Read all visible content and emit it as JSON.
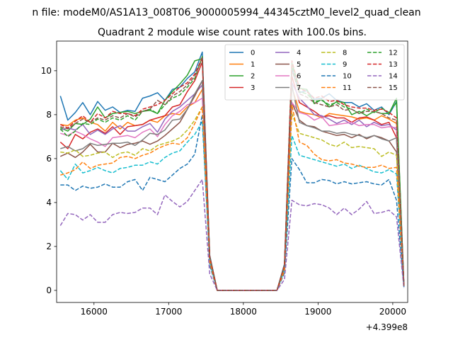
{
  "figure": {
    "suptitle": "n file: modeM0/AS1A13_008T06_9000005994_44345cztM0_level2_quad_clean"
  },
  "chart_data": {
    "type": "line",
    "title": "Quadrant 2 module wise count rates with 100.0s bins.",
    "xlabel": "",
    "ylabel": "",
    "x_offset_label": "+4.399e8",
    "xlim": [
      15500,
      20200
    ],
    "ylim": [
      -0.55,
      11.35
    ],
    "xticks": [
      16000,
      17000,
      18000,
      19000,
      20000
    ],
    "xtick_labels": [
      "16000",
      "17000",
      "18000",
      "19000",
      "20000"
    ],
    "yticks": [
      0,
      2,
      4,
      6,
      8,
      10
    ],
    "ytick_labels": [
      "0",
      "2",
      "4",
      "6",
      "8",
      "10"
    ],
    "grid": false,
    "legend_position": "upper-right",
    "legend_columns": 4,
    "x_pre": [
      15550,
      15650,
      15750,
      15850,
      15950,
      16050,
      16150,
      16250,
      16350,
      16450,
      16550,
      16650,
      16750,
      16850,
      16950,
      17050,
      17150,
      17250,
      17350,
      17450,
      17550,
      17650,
      17750,
      17850,
      17950,
      18050,
      18150,
      18250,
      18350,
      18450,
      18550,
      18650,
      18750,
      18850,
      18950,
      19050,
      19150,
      19250,
      19350,
      19450,
      19550,
      19650,
      19750,
      19850,
      19950,
      20050,
      20150
    ],
    "series": [
      {
        "name": "0",
        "color": "#1f77b4",
        "dash": "solid",
        "values": [
          8.85,
          7.75,
          8.1,
          8.55,
          8.0,
          8.6,
          8.2,
          8.35,
          8.1,
          8.2,
          8.15,
          8.75,
          8.85,
          9.0,
          8.65,
          9.15,
          9.25,
          9.65,
          9.95,
          10.85,
          1.6,
          0.0,
          0.0,
          0.0,
          0.0,
          0.0,
          0.0,
          0.0,
          0.0,
          0.0,
          1.2,
          10.1,
          9.0,
          9.1,
          8.7,
          8.75,
          8.95,
          8.65,
          8.55,
          8.55,
          8.35,
          8.5,
          8.2,
          8.35,
          8.0,
          8.6,
          0.25
        ]
      },
      {
        "name": "1",
        "color": "#ff7f0e",
        "dash": "solid",
        "values": [
          7.55,
          7.5,
          7.75,
          7.85,
          7.65,
          7.55,
          7.25,
          7.65,
          7.35,
          7.65,
          7.5,
          7.55,
          7.75,
          7.65,
          7.95,
          8.05,
          8.0,
          8.35,
          8.55,
          9.15,
          1.5,
          0.0,
          0.0,
          0.0,
          0.0,
          0.0,
          0.0,
          0.0,
          0.0,
          0.0,
          1.1,
          9.25,
          8.15,
          8.05,
          8.0,
          7.85,
          8.05,
          8.0,
          7.95,
          7.9,
          7.8,
          7.85,
          7.75,
          7.95,
          7.8,
          7.6,
          0.2
        ]
      },
      {
        "name": "2",
        "color": "#2ca02c",
        "dash": "solid",
        "values": [
          7.4,
          7.25,
          7.6,
          7.55,
          7.8,
          8.35,
          7.85,
          8.05,
          8.1,
          8.15,
          8.05,
          8.15,
          8.2,
          8.05,
          8.65,
          9.05,
          9.4,
          9.8,
          10.45,
          10.55,
          1.55,
          0.0,
          0.0,
          0.0,
          0.0,
          0.0,
          0.0,
          0.0,
          0.0,
          0.0,
          1.15,
          10.35,
          9.2,
          9.15,
          8.5,
          8.7,
          8.35,
          8.6,
          8.55,
          8.0,
          8.15,
          7.95,
          8.15,
          8.05,
          8.05,
          8.75,
          0.2
        ]
      },
      {
        "name": "3",
        "color": "#d62728",
        "dash": "solid",
        "values": [
          6.75,
          6.45,
          7.1,
          6.9,
          7.2,
          7.35,
          7.15,
          7.45,
          7.1,
          7.45,
          7.5,
          7.55,
          7.75,
          7.85,
          7.95,
          8.35,
          8.45,
          9.05,
          9.55,
          10.4,
          1.45,
          0.0,
          0.0,
          0.0,
          0.0,
          0.0,
          0.0,
          0.0,
          0.0,
          0.0,
          1.1,
          9.75,
          8.55,
          8.35,
          8.15,
          7.9,
          7.95,
          7.85,
          7.85,
          7.65,
          7.85,
          7.9,
          7.75,
          7.55,
          7.65,
          6.95,
          0.2
        ]
      },
      {
        "name": "4",
        "color": "#9467bd",
        "dash": "solid",
        "values": [
          7.3,
          7.4,
          7.3,
          7.55,
          7.1,
          7.3,
          7.1,
          7.35,
          7.5,
          7.25,
          7.25,
          7.45,
          7.6,
          7.2,
          7.8,
          8.15,
          8.35,
          8.65,
          8.95,
          9.35,
          1.45,
          0.0,
          0.0,
          0.0,
          0.0,
          0.0,
          0.0,
          0.0,
          0.0,
          0.0,
          1.1,
          9.45,
          8.75,
          8.4,
          8.0,
          7.95,
          7.8,
          7.6,
          7.75,
          7.55,
          7.75,
          7.45,
          7.65,
          7.5,
          7.55,
          7.3,
          0.2
        ]
      },
      {
        "name": "5",
        "color": "#8c564b",
        "dash": "solid",
        "values": [
          6.1,
          6.25,
          6.05,
          6.3,
          6.65,
          6.3,
          6.3,
          6.7,
          6.5,
          6.65,
          6.7,
          6.8,
          6.65,
          6.8,
          7.05,
          7.35,
          7.65,
          8.25,
          8.85,
          9.55,
          1.4,
          0.0,
          0.0,
          0.0,
          0.0,
          0.0,
          0.0,
          0.0,
          0.0,
          0.0,
          1.0,
          8.55,
          7.75,
          7.5,
          7.45,
          7.25,
          7.15,
          7.05,
          7.1,
          6.95,
          7.1,
          6.9,
          7.05,
          6.95,
          6.8,
          6.3,
          0.2
        ]
      },
      {
        "name": "6",
        "color": "#e377c2",
        "dash": "solid",
        "values": [
          7.15,
          7.05,
          7.25,
          7.1,
          6.9,
          6.75,
          6.55,
          6.95,
          7.0,
          7.05,
          6.95,
          7.2,
          7.35,
          7.0,
          7.55,
          7.95,
          8.15,
          8.45,
          8.55,
          8.75,
          1.4,
          0.0,
          0.0,
          0.0,
          0.0,
          0.0,
          0.0,
          0.0,
          0.0,
          0.0,
          1.0,
          8.55,
          8.1,
          8.0,
          7.75,
          7.9,
          7.5,
          7.55,
          7.6,
          7.65,
          7.5,
          7.55,
          7.55,
          7.4,
          7.45,
          7.4,
          0.2
        ]
      },
      {
        "name": "7",
        "color": "#7f7f7f",
        "dash": "solid",
        "values": [
          6.45,
          6.55,
          6.35,
          6.45,
          6.7,
          6.6,
          6.65,
          6.7,
          6.7,
          6.75,
          6.6,
          6.85,
          7.15,
          7.1,
          7.3,
          7.75,
          7.8,
          8.25,
          8.95,
          9.55,
          1.4,
          0.0,
          0.0,
          0.0,
          0.0,
          0.0,
          0.0,
          0.0,
          0.0,
          0.0,
          1.0,
          9.35,
          7.65,
          7.5,
          7.4,
          7.25,
          7.25,
          7.15,
          7.2,
          7.1,
          7.05,
          6.95,
          7.05,
          6.9,
          6.8,
          6.95,
          0.2
        ]
      },
      {
        "name": "8",
        "color": "#bcbd22",
        "dash": "dashed",
        "values": [
          6.3,
          6.25,
          6.4,
          6.1,
          6.15,
          6.25,
          6.3,
          6.05,
          6.25,
          6.3,
          6.15,
          6.45,
          6.35,
          6.6,
          6.7,
          6.8,
          6.95,
          7.3,
          7.75,
          8.35,
          1.3,
          0.0,
          0.0,
          0.0,
          0.0,
          0.0,
          0.0,
          0.0,
          0.0,
          0.0,
          0.95,
          8.05,
          7.15,
          7.05,
          6.95,
          6.85,
          6.65,
          6.55,
          6.75,
          6.5,
          6.55,
          6.5,
          6.45,
          6.1,
          6.3,
          6.15,
          0.2
        ]
      },
      {
        "name": "9",
        "color": "#17becf",
        "dash": "dashed",
        "values": [
          5.45,
          5.05,
          5.75,
          5.35,
          5.45,
          5.6,
          5.45,
          5.35,
          5.55,
          5.6,
          5.7,
          5.7,
          5.85,
          5.75,
          6.05,
          6.25,
          6.35,
          6.75,
          7.1,
          7.7,
          1.25,
          0.0,
          0.0,
          0.0,
          0.0,
          0.0,
          0.0,
          0.0,
          0.0,
          0.0,
          0.9,
          7.05,
          6.15,
          6.05,
          5.95,
          5.85,
          5.75,
          5.65,
          5.75,
          5.55,
          5.7,
          5.55,
          5.4,
          5.35,
          5.5,
          5.3,
          0.2
        ]
      },
      {
        "name": "10",
        "color": "#1f77b4",
        "dash": "dashed",
        "values": [
          4.8,
          4.8,
          4.55,
          4.75,
          4.65,
          4.7,
          4.85,
          4.7,
          4.7,
          4.95,
          5.05,
          4.55,
          5.15,
          5.05,
          4.95,
          5.25,
          5.55,
          5.75,
          6.2,
          8.0,
          1.15,
          0.0,
          0.0,
          0.0,
          0.0,
          0.0,
          0.0,
          0.0,
          0.0,
          0.0,
          0.8,
          6.0,
          5.5,
          4.9,
          4.9,
          5.05,
          5.0,
          4.85,
          4.95,
          4.85,
          4.9,
          4.95,
          4.85,
          4.8,
          5.05,
          4.1,
          0.15
        ]
      },
      {
        "name": "11",
        "color": "#ff7f0e",
        "dash": "dashed",
        "values": [
          5.25,
          5.35,
          5.5,
          5.85,
          5.55,
          5.7,
          5.75,
          5.8,
          6.05,
          6.1,
          6.0,
          6.15,
          6.25,
          6.45,
          6.6,
          6.7,
          6.65,
          6.95,
          7.6,
          8.35,
          1.3,
          0.0,
          0.0,
          0.0,
          0.0,
          0.0,
          0.0,
          0.0,
          0.0,
          0.0,
          0.9,
          8.45,
          6.75,
          6.6,
          6.2,
          5.95,
          5.9,
          5.95,
          5.8,
          5.75,
          5.65,
          5.6,
          5.6,
          5.7,
          5.55,
          5.6,
          0.2
        ]
      },
      {
        "name": "12",
        "color": "#2ca02c",
        "dash": "dashed",
        "values": [
          7.35,
          7.0,
          7.25,
          7.6,
          7.55,
          7.8,
          7.65,
          7.85,
          7.75,
          7.95,
          7.75,
          8.15,
          8.25,
          8.05,
          8.45,
          8.75,
          8.9,
          9.25,
          9.65,
          10.65,
          1.55,
          0.0,
          0.0,
          0.0,
          0.0,
          0.0,
          0.0,
          0.0,
          0.0,
          0.0,
          1.15,
          10.25,
          9.05,
          8.95,
          8.6,
          8.65,
          8.45,
          8.55,
          8.35,
          8.25,
          8.05,
          8.25,
          8.1,
          8.3,
          8.1,
          8.55,
          0.2
        ]
      },
      {
        "name": "13",
        "color": "#d62728",
        "dash": "dashed",
        "values": [
          7.55,
          7.4,
          7.7,
          7.95,
          7.65,
          8.05,
          7.85,
          8.15,
          8.05,
          8.05,
          7.95,
          8.25,
          8.35,
          8.45,
          8.65,
          8.95,
          9.25,
          9.45,
          9.85,
          10.6,
          1.55,
          0.0,
          0.0,
          0.0,
          0.0,
          0.0,
          0.0,
          0.0,
          0.0,
          0.0,
          1.15,
          10.45,
          9.2,
          9.05,
          8.75,
          8.85,
          8.6,
          8.65,
          8.45,
          8.35,
          8.3,
          8.3,
          8.2,
          8.25,
          8.1,
          7.85,
          0.2
        ]
      },
      {
        "name": "14",
        "color": "#9467bd",
        "dash": "dashed",
        "values": [
          2.95,
          3.5,
          3.45,
          3.2,
          3.45,
          3.1,
          3.1,
          3.45,
          3.55,
          3.5,
          3.55,
          3.75,
          3.75,
          3.45,
          4.35,
          4.05,
          3.8,
          4.05,
          4.55,
          5.05,
          0.75,
          0.0,
          0.0,
          0.0,
          0.0,
          0.0,
          0.0,
          0.0,
          0.0,
          0.0,
          0.5,
          4.1,
          3.9,
          3.85,
          3.95,
          3.9,
          3.75,
          3.45,
          3.75,
          3.45,
          3.7,
          4.05,
          3.5,
          3.55,
          3.65,
          3.35,
          0.1
        ]
      },
      {
        "name": "15",
        "color": "#8c564b",
        "dash": "dashed",
        "values": [
          7.45,
          7.35,
          7.6,
          7.8,
          7.65,
          7.85,
          7.75,
          7.95,
          7.85,
          8.05,
          7.9,
          8.15,
          8.25,
          8.65,
          8.45,
          8.85,
          9.05,
          9.35,
          9.75,
          10.55,
          1.55,
          0.0,
          0.0,
          0.0,
          0.0,
          0.0,
          0.0,
          0.0,
          0.0,
          0.0,
          1.15,
          10.05,
          8.95,
          8.8,
          8.55,
          8.45,
          8.35,
          8.45,
          8.2,
          8.25,
          8.05,
          8.15,
          8.15,
          8.05,
          7.85,
          7.75,
          0.2
        ]
      }
    ]
  }
}
